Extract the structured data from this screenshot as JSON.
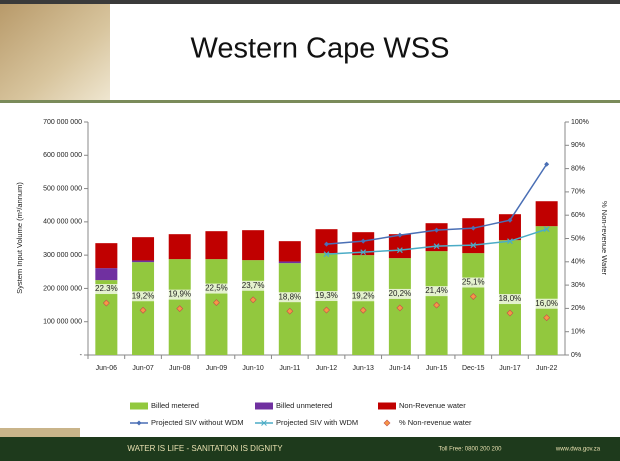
{
  "chart_data": {
    "type": "bar",
    "title": "Western Cape WSS",
    "y_label": "System Input Volume (m³/annum)",
    "y2_label": "% Non-revenue Water",
    "categories": [
      "Jun-06",
      "Jun-07",
      "Jun-08",
      "Jun-09",
      "Jun-10",
      "Jun-11",
      "Jun-12",
      "Jun-13",
      "Jun-14",
      "Jun-15",
      "Dec-15",
      "Jun-17",
      "Jun-22"
    ],
    "ylim": [
      0,
      700000000
    ],
    "yticks": [
      {
        "value": 0,
        "label": "-"
      },
      {
        "value": 100000000,
        "label": "100 000 000"
      },
      {
        "value": 200000000,
        "label": "200 000 000"
      },
      {
        "value": 300000000,
        "label": "300 000 000"
      },
      {
        "value": 400000000,
        "label": "400 000 000"
      },
      {
        "value": 500000000,
        "label": "500 000 000"
      },
      {
        "value": 600000000,
        "label": "600 000 000"
      },
      {
        "value": 700000000,
        "label": "700 000 000"
      }
    ],
    "y2lim": [
      0,
      100
    ],
    "y2ticks": [
      {
        "value": 0,
        "label": "0%"
      },
      {
        "value": 10,
        "label": "10%"
      },
      {
        "value": 20,
        "label": "20%"
      },
      {
        "value": 30,
        "label": "30%"
      },
      {
        "value": 40,
        "label": "40%"
      },
      {
        "value": 50,
        "label": "50%"
      },
      {
        "value": 60,
        "label": "60%"
      },
      {
        "value": 70,
        "label": "70%"
      },
      {
        "value": 80,
        "label": "80%"
      },
      {
        "value": 90,
        "label": "90%"
      },
      {
        "value": 100,
        "label": "100%"
      }
    ],
    "series": [
      {
        "name": "Billed metered",
        "type": "bar",
        "color": "#92c83e",
        "values": [
          225000000,
          279000000,
          288000000,
          288000000,
          285000000,
          276000000,
          306000000,
          300000000,
          291000000,
          312000000,
          306000000,
          345000000,
          387000000
        ]
      },
      {
        "name": "Billed unmetered",
        "type": "bar",
        "color": "#7030a0",
        "values": [
          36000000,
          5000000,
          0,
          0,
          0,
          5000000,
          0,
          0,
          0,
          0,
          0,
          0,
          0
        ]
      },
      {
        "name": "Non-Revenue water",
        "type": "bar",
        "color": "#c00000",
        "values": [
          75000000,
          70000000,
          75000000,
          84000000,
          90000000,
          61000000,
          72000000,
          69000000,
          72000000,
          84000000,
          105000000,
          78000000,
          75000000
        ]
      },
      {
        "name": "Projected SIV without WDM",
        "type": "line",
        "marker": "diamond",
        "color": "#4a6fb5",
        "values": [
          null,
          null,
          null,
          null,
          null,
          null,
          333000000,
          342000000,
          360000000,
          375000000,
          381000000,
          405000000,
          573000000
        ]
      },
      {
        "name": "Projected SIV with WDM",
        "type": "line",
        "marker": "x",
        "color": "#4bacc6",
        "values": [
          null,
          null,
          null,
          null,
          null,
          null,
          303000000,
          309000000,
          315000000,
          327000000,
          330000000,
          342000000,
          378000000
        ]
      },
      {
        "name": "% Non-revenue water",
        "type": "scatter",
        "marker": "diamond",
        "color": "#f79646",
        "axis": "y2",
        "values": [
          22.3,
          19.2,
          19.9,
          22.5,
          23.7,
          18.8,
          19.3,
          19.2,
          20.2,
          21.4,
          25.1,
          18.0,
          16.0
        ],
        "value_labels": [
          "22.3%",
          "19,2%",
          "19,9%",
          "22,5%",
          "23,7%",
          "18,8%",
          "19,3%",
          "19,2%",
          "20,2%",
          "21,4%",
          "25,1%",
          "18,0%",
          "16,0%"
        ]
      }
    ]
  },
  "footer": {
    "slogan": "WATER IS LIFE - SANITATION IS DIGNITY",
    "phone": "Toll Free: 0800 200 200",
    "website": "www.dwa.gov.za"
  }
}
